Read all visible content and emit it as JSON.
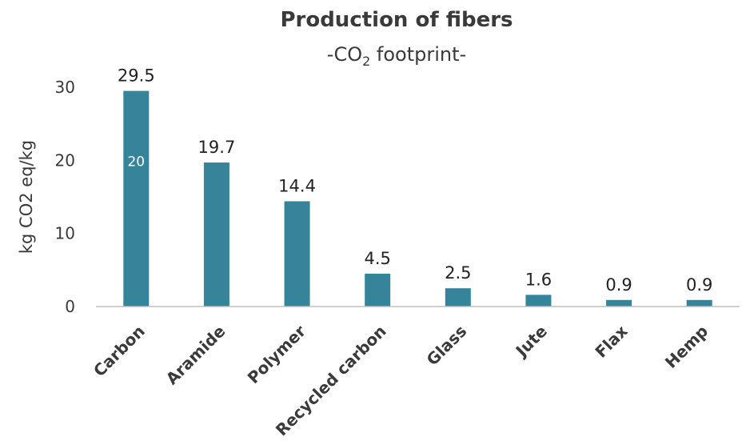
{
  "chart_data": {
    "type": "bar",
    "title": "Production of fibers",
    "subtitle": {
      "prefix": "-CO",
      "subscript": "2",
      "suffix": " footprint-"
    },
    "ylabel": "kg CO2 eq/kg",
    "xlabel": "",
    "categories": [
      "Carbon",
      "Aramide",
      "Polymer",
      "Recycled carbon",
      "Glass",
      "Jute",
      "Flax",
      "Hemp"
    ],
    "values": [
      29.5,
      19.7,
      14.4,
      4.5,
      2.5,
      1.6,
      0.9,
      0.9
    ],
    "data_labels": [
      "29.5",
      "19.7",
      "14.4",
      "4.5",
      "2.5",
      "1.6",
      "0.9",
      "0.9"
    ],
    "ylim": [
      0,
      30
    ],
    "yticks": [
      "0",
      "10",
      "20",
      "30"
    ],
    "grid": false,
    "legend": "none",
    "bar_color": "#35849A",
    "inner_label": {
      "category": "Carbon",
      "text": "20",
      "value": 20
    }
  }
}
